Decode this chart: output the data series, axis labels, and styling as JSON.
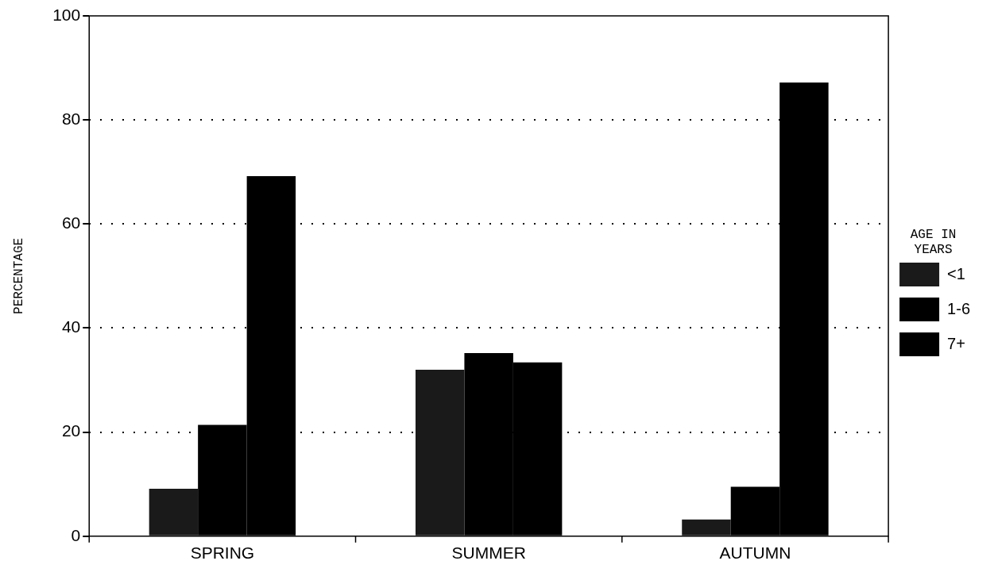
{
  "chart_data": {
    "type": "bar",
    "ylabel": "PERCENTAGE",
    "legend_title": "AGE IN YEARS",
    "categories": [
      "SPRING",
      "SUMMER",
      "AUTUMN"
    ],
    "series": [
      {
        "name": "<1",
        "color": "#1a1a1a",
        "values": [
          9.1,
          32.0,
          3.2
        ]
      },
      {
        "name": "1-6",
        "color": "#000000",
        "values": [
          21.4,
          35.2,
          9.5
        ]
      },
      {
        "name": "7+",
        "color": "#000000",
        "values": [
          69.2,
          33.4,
          87.2
        ]
      }
    ],
    "ylim": [
      0,
      100
    ],
    "yticks": [
      0,
      20,
      40,
      60,
      80,
      100
    ],
    "grid": "y",
    "legend": "right"
  }
}
